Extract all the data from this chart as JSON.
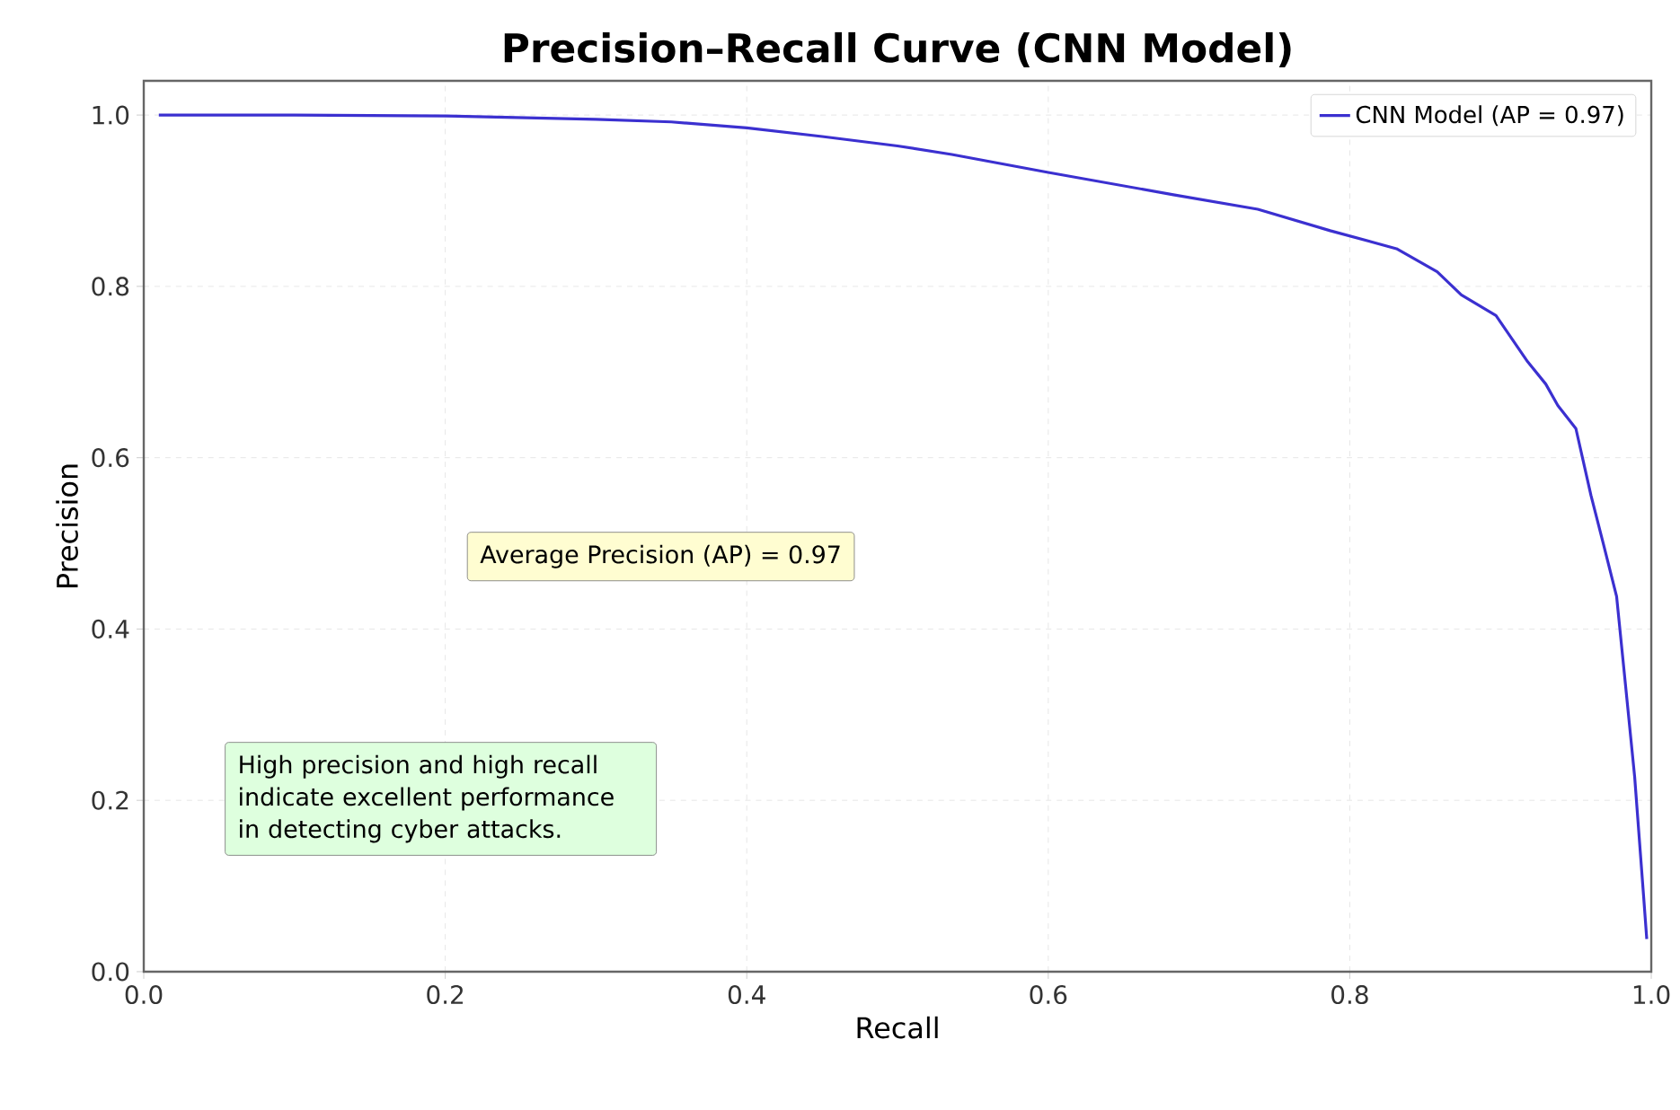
{
  "chart_data": {
    "type": "line",
    "title": "Precision–Recall Curve (CNN Model)",
    "xlabel": "Recall",
    "ylabel": "Precision",
    "x": [
      0.01,
      0.1,
      0.2,
      0.3,
      0.35,
      0.4,
      0.45,
      0.5,
      0.536,
      0.6,
      0.683,
      0.739,
      0.787,
      0.831,
      0.858,
      0.874,
      0.897,
      0.918,
      0.93,
      0.938,
      0.95,
      0.96,
      0.968,
      0.977,
      0.983,
      0.989,
      0.995,
      0.997
    ],
    "series": [
      {
        "name": "CNN Model (AP = 0.97)",
        "color": "#3b30d0",
        "values": [
          1.0,
          1.0,
          0.999,
          0.995,
          0.992,
          0.985,
          0.975,
          0.964,
          0.954,
          0.933,
          0.907,
          0.89,
          0.865,
          0.844,
          0.817,
          0.79,
          0.766,
          0.712,
          0.686,
          0.661,
          0.634,
          0.556,
          0.501,
          0.438,
          0.333,
          0.227,
          0.086,
          0.038
        ]
      }
    ],
    "xlim": [
      0,
      1
    ],
    "ylim": [
      0,
      1.04
    ],
    "xticks": [
      {
        "value": 0,
        "label": "0.0"
      },
      0.2,
      0.4,
      0.6,
      0.8,
      {
        "value": 1,
        "label": "1.0"
      }
    ],
    "yticks": [
      {
        "value": 0,
        "label": "0.0"
      },
      0.2,
      0.4,
      0.6,
      0.8,
      {
        "value": 1,
        "label": "1.0"
      }
    ],
    "grid": true,
    "legend": "top right",
    "annotations": [
      "Average Precision (AP) = 0.97",
      "High precision and high recall indicate excellent performance in detecting cyber attacks."
    ]
  }
}
